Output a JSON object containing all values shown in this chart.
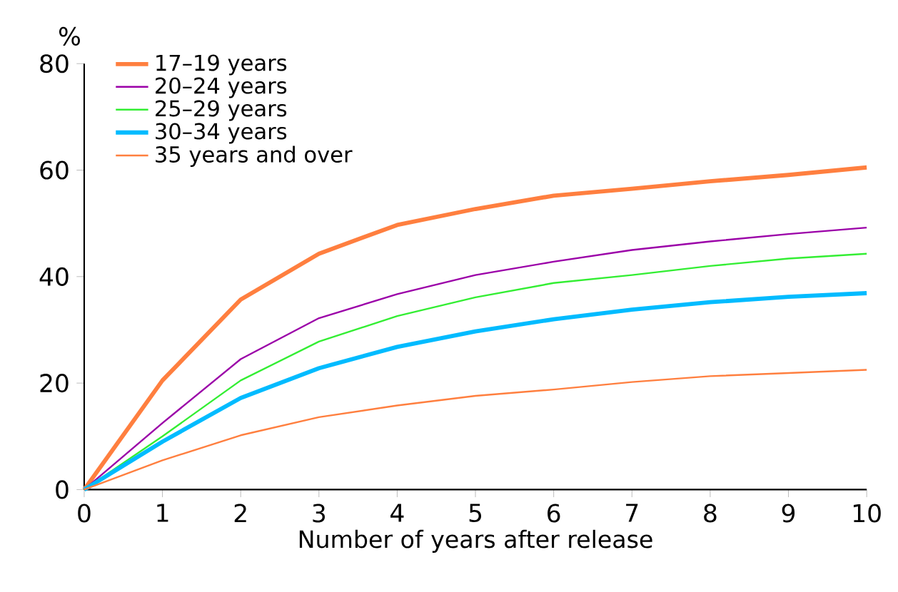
{
  "chart_data": {
    "type": "line",
    "ylabel": "%",
    "xlabel": "Number of years after release",
    "x": [
      0,
      1,
      2,
      3,
      4,
      5,
      6,
      7,
      8,
      9,
      10
    ],
    "xlim": [
      0,
      10
    ],
    "xticks": [
      0,
      1,
      2,
      3,
      4,
      5,
      6,
      7,
      8,
      9,
      10
    ],
    "ylim": [
      0,
      80
    ],
    "yticks": [
      0,
      20,
      40,
      60,
      80
    ],
    "grid": false,
    "legend": "top left",
    "marker": "none",
    "line_style": "solid",
    "series": [
      {
        "name": "17–19 years",
        "color": "#ff7f3f",
        "values": [
          0,
          20.5,
          35.7,
          44.3,
          49.7,
          52.7,
          55.2,
          56.5,
          57.9,
          59.1,
          60.5
        ]
      },
      {
        "name": "20–24 years",
        "color": "#9b00a8",
        "values": [
          0,
          12.5,
          24.5,
          32.2,
          36.7,
          40.3,
          42.8,
          45,
          46.6,
          48,
          49.2
        ]
      },
      {
        "name": "25–29 years",
        "color": "#33ee33",
        "values": [
          0,
          10,
          20.5,
          27.8,
          32.6,
          36.1,
          38.8,
          40.3,
          42,
          43.4,
          44.3
        ]
      },
      {
        "name": "30–34 years",
        "color": "#00bbff",
        "values": [
          0,
          9,
          17.2,
          22.8,
          26.8,
          29.7,
          32,
          33.8,
          35.2,
          36.2,
          36.9
        ]
      },
      {
        "name": "35 years and over",
        "color": "#ff7f3f",
        "values": [
          0,
          5.5,
          10.2,
          13.6,
          15.8,
          17.6,
          18.8,
          20.2,
          21.3,
          21.9,
          22.5
        ]
      }
    ]
  }
}
